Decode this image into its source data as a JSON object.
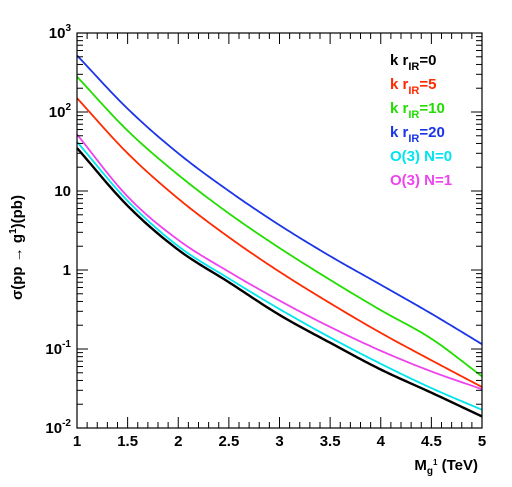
{
  "chart_data": {
    "type": "line",
    "title": "",
    "xlabel": {
      "base": "M",
      "sub": "g",
      "sup": "1",
      "unit": " (TeV)"
    },
    "ylabel": {
      "pre": "σ(pp → g",
      "sup": "1",
      "post": ")(pb)"
    },
    "xlim": [
      1,
      5
    ],
    "ylim": [
      0.01,
      1000
    ],
    "yscale": "log",
    "x_ticks": [
      1,
      1.5,
      2,
      2.5,
      3,
      3.5,
      4,
      4.5,
      5
    ],
    "x_tick_labels": [
      "1",
      "1.5",
      "2",
      "2.5",
      "3",
      "3.5",
      "4",
      "4.5",
      "5"
    ],
    "y_ticks": [
      {
        "value": 0.01,
        "base": "10",
        "exp": "-2"
      },
      {
        "value": 0.1,
        "base": "10",
        "exp": "-1"
      },
      {
        "value": 1,
        "base": "1",
        "exp": ""
      },
      {
        "value": 10,
        "base": "10",
        "exp": ""
      },
      {
        "value": 100,
        "base": "10",
        "exp": "2"
      },
      {
        "value": 1000,
        "base": "10",
        "exp": "3"
      }
    ],
    "grid": false,
    "legend_position": "top-right",
    "series": [
      {
        "name": "k r_IR=0",
        "label": {
          "pre": "k r",
          "sub": "IR",
          "post": "=0"
        },
        "color": "#000000",
        "x": [
          1,
          1.5,
          2,
          2.5,
          3,
          3.5,
          4,
          4.5,
          5
        ],
        "y": [
          35,
          6.5,
          1.8,
          0.7,
          0.27,
          0.12,
          0.055,
          0.028,
          0.014
        ]
      },
      {
        "name": "k r_IR=5",
        "label": {
          "pre": "k r",
          "sub": "IR",
          "post": "=5"
        },
        "color": "#ff2a00",
        "x": [
          1,
          1.5,
          2,
          2.5,
          3,
          3.5,
          4,
          4.5,
          5
        ],
        "y": [
          150,
          30,
          8,
          2.6,
          0.95,
          0.38,
          0.16,
          0.072,
          0.033
        ]
      },
      {
        "name": "k r_IR=10",
        "label": {
          "pre": "k r",
          "sub": "IR",
          "post": "=10"
        },
        "color": "#22dd00",
        "x": [
          1,
          1.5,
          2,
          2.5,
          3,
          3.5,
          4,
          4.5,
          5
        ],
        "y": [
          280,
          58,
          16,
          5.2,
          1.9,
          0.75,
          0.31,
          0.135,
          0.045
        ]
      },
      {
        "name": "k r_IR=20",
        "label": {
          "pre": "k r",
          "sub": "IR",
          "post": "=20"
        },
        "color": "#1a35e8",
        "x": [
          1,
          1.5,
          2,
          2.5,
          3,
          3.5,
          4,
          4.5,
          5
        ],
        "y": [
          520,
          110,
          30,
          10,
          3.7,
          1.5,
          0.65,
          0.28,
          0.115
        ]
      },
      {
        "name": "O(3) N=0",
        "label": {
          "pre": "O(3) N=0",
          "sub": "",
          "post": ""
        },
        "color": "#00e5f0",
        "x": [
          1,
          1.5,
          2,
          2.5,
          3,
          3.5,
          4,
          4.5,
          5
        ],
        "y": [
          42,
          7.5,
          2.0,
          0.78,
          0.32,
          0.14,
          0.065,
          0.032,
          0.017
        ]
      },
      {
        "name": "O(3) N=1",
        "label": {
          "pre": "O(3) N=1",
          "sub": "",
          "post": ""
        },
        "color": "#ee44ee",
        "x": [
          1,
          1.5,
          2,
          2.5,
          3,
          3.5,
          4,
          4.5,
          5
        ],
        "y": [
          52,
          8.5,
          2.4,
          0.95,
          0.41,
          0.19,
          0.095,
          0.052,
          0.031
        ]
      }
    ]
  }
}
